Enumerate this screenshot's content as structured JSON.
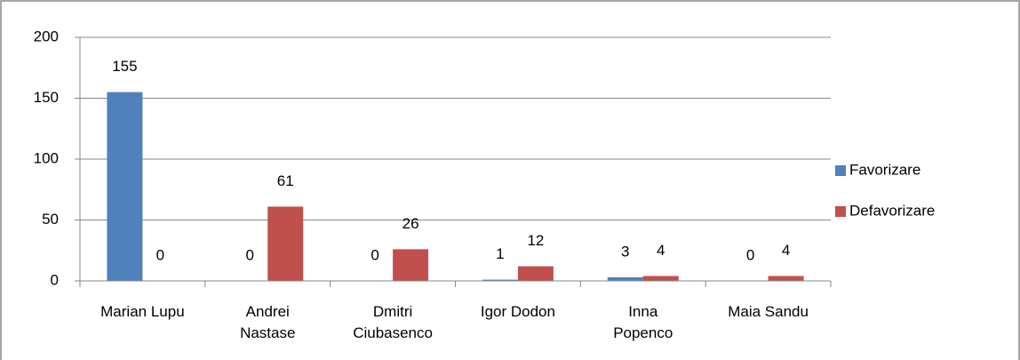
{
  "chart_data": {
    "type": "bar",
    "categories": [
      "Marian Lupu",
      "Andrei Nastase",
      "Dmitri Ciubasenco",
      "Igor Dodon",
      "Inna Popenco",
      "Maia Sandu"
    ],
    "series": [
      {
        "name": "Favorizare",
        "color": "#4f81bd",
        "values": [
          155,
          0,
          0,
          1,
          3,
          0
        ]
      },
      {
        "name": "Defavorizare",
        "color": "#c0504d",
        "values": [
          0,
          61,
          26,
          12,
          4,
          4
        ]
      }
    ],
    "ylim": [
      0,
      200
    ],
    "yticks": [
      0,
      50,
      100,
      150,
      200
    ],
    "grid": true,
    "legend": "right"
  }
}
